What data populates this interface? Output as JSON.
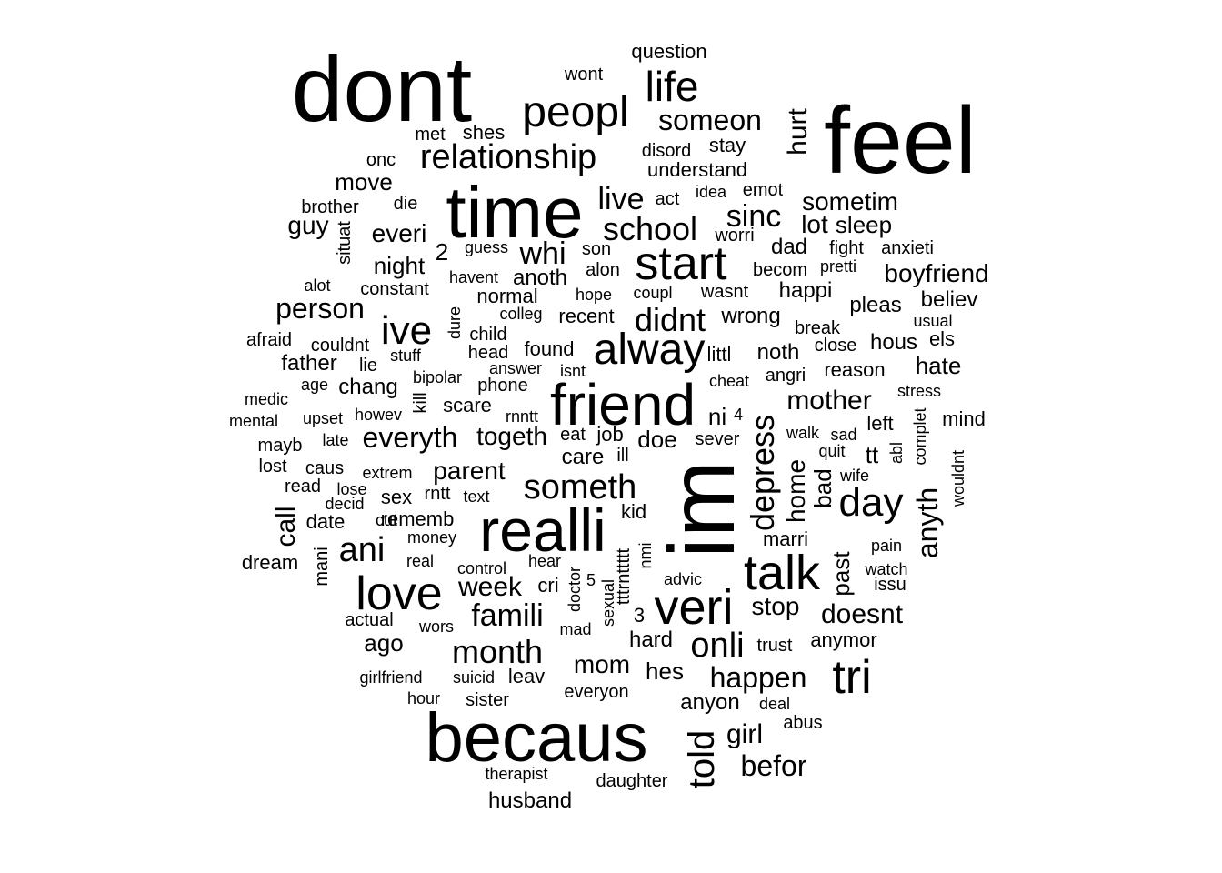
{
  "color": "#000000",
  "background": "#ffffff",
  "words": [
    "feel",
    "dont",
    "im",
    "time",
    "becaus",
    "friend",
    "realli",
    "veri",
    "talk",
    "alway",
    "start",
    "love",
    "peopl",
    "tri",
    "ive",
    "life",
    "relationship",
    "someth",
    "day",
    "depress",
    "month",
    "told",
    "onli",
    "ani",
    "school",
    "didnt",
    "someon",
    "sinc",
    "whi",
    "famili",
    "live",
    "anyth",
    "happen",
    "hurt",
    "everyth",
    "person",
    "mother",
    "befor",
    "doesnt",
    "week",
    "boyfriend",
    "togeth",
    "home",
    "move",
    "sometim",
    "mom",
    "girl",
    "call",
    "stop",
    "parent",
    "hate",
    "bad",
    "guy",
    "everi",
    "past",
    "lot",
    "sleep",
    "night",
    "hous",
    "question",
    "wont",
    "shes",
    "met",
    "onc",
    "disord",
    "stay",
    "understand",
    "emot",
    "idea",
    "act",
    "brother",
    "die",
    "guess",
    "son",
    "worri",
    "dad",
    "fight",
    "anxieti",
    "situat",
    "2",
    "alot",
    "havent",
    "anoth",
    "alon",
    "becom",
    "pretti",
    "constant",
    "normal",
    "hope",
    "coupl",
    "wasnt",
    "happi",
    "pleas",
    "believ",
    "dure",
    "colleg",
    "recent",
    "wrong",
    "break",
    "usual",
    "afraid",
    "child",
    "couldnt",
    "stuff",
    "head",
    "found",
    "littl",
    "noth",
    "close",
    "els",
    "father",
    "lie",
    "bipolar",
    "answer",
    "isnt",
    "cheat",
    "angri",
    "reason",
    "medic",
    "age",
    "chang",
    "kill",
    "phone",
    "scare",
    "stress",
    "mental",
    "upset",
    "howev",
    "rnntt",
    "eat",
    "job",
    "ni",
    "4",
    "walk",
    "sad",
    "left",
    "complet",
    "mind",
    "mayb",
    "late",
    "care",
    "ill",
    "doe",
    "sever",
    "quit",
    "tt",
    "abl",
    "lost",
    "caus",
    "extrem",
    "wife",
    "wouldnt",
    "read",
    "lose",
    "rntt",
    "text",
    "decid",
    "sex",
    "date",
    "cut",
    "rememb",
    "kid",
    "money",
    "mani",
    "real",
    "hear",
    "control",
    "marri",
    "pain",
    "dream",
    "tttrnttttt",
    "nmi",
    "advic",
    "watch",
    "cri",
    "doctor",
    "issu",
    "5",
    "sexual",
    "3",
    "actual",
    "wors",
    "mad",
    "hard",
    "trust",
    "anymor",
    "ago",
    "girlfriend",
    "suicid",
    "leav",
    "hes",
    "hour",
    "sister",
    "everyon",
    "anyon",
    "deal",
    "abus",
    "therapist",
    "daughter",
    "husband"
  ]
}
